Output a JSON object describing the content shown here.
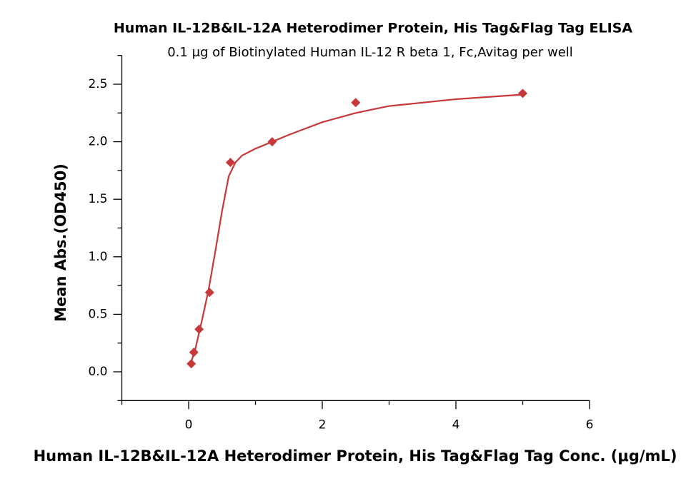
{
  "chart_data": {
    "type": "scatter",
    "title": "Human IL-12B&IL-12A Heterodimer Protein, His Tag&Flag Tag ELISA",
    "subtitle": "0.1 μg of Biotinylated Human IL-12 R beta 1, Fc,Avitag per well",
    "xlabel": "Human IL-12B&IL-12A Heterodimer Protein, His Tag&Flag Tag Conc. (μg/mL)",
    "ylabel": "Mean Abs.(OD450)",
    "x": [
      0.039,
      0.078,
      0.156,
      0.313,
      0.625,
      1.25,
      2.5,
      5
    ],
    "values": [
      0.07,
      0.17,
      0.37,
      0.69,
      1.82,
      2.0,
      2.34,
      2.42
    ],
    "color": "#c8383a",
    "curve": {
      "x": [
        0.02,
        0.1,
        0.2,
        0.3,
        0.4,
        0.5,
        0.6,
        0.7,
        0.8,
        1.0,
        1.25,
        1.5,
        2.0,
        2.5,
        3,
        4,
        5
      ],
      "values": [
        0.05,
        0.2,
        0.45,
        0.72,
        1.05,
        1.4,
        1.7,
        1.82,
        1.88,
        1.94,
        2.0,
        2.06,
        2.17,
        2.25,
        2.31,
        2.37,
        2.41
      ]
    },
    "xlim": [
      -1,
      6
    ],
    "ylim": [
      -0.25,
      2.75
    ],
    "xticks": [
      0,
      2,
      4,
      6
    ],
    "yticks": [
      {
        "value": 0,
        "label": "0.0"
      },
      0.5,
      {
        "value": 1,
        "label": "1.0"
      },
      1.5,
      {
        "value": 2,
        "label": "2.0"
      },
      2.5
    ],
    "xminorticks": [
      -1,
      1,
      3,
      5
    ],
    "yminorticks": [
      -0.25,
      0.25,
      0.75,
      1.25,
      1.75,
      2.25,
      2.75
    ]
  }
}
